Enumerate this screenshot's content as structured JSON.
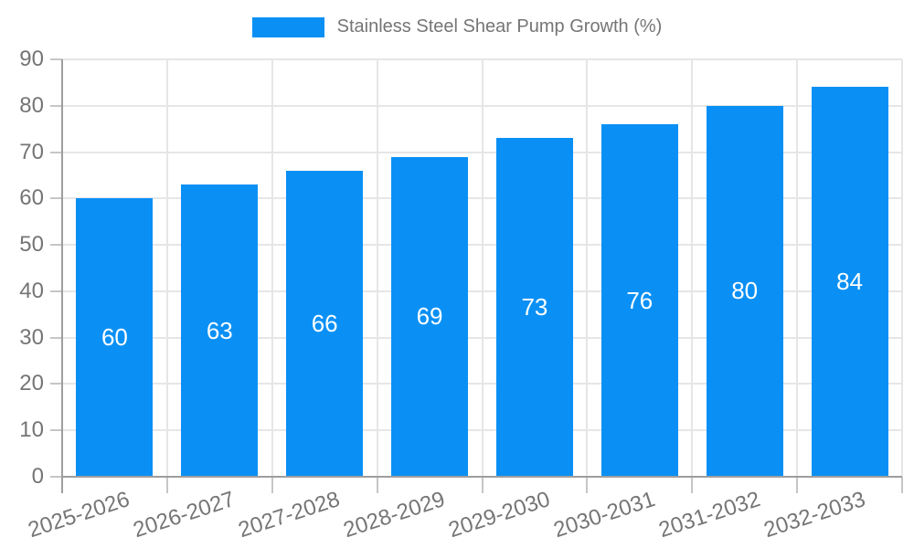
{
  "chart_data": {
    "type": "bar",
    "title": "Stainless Steel Shear Pump Growth (%)",
    "categories": [
      "2025-2026",
      "2026-2027",
      "2027-2028",
      "2028-2029",
      "2029-2030",
      "2030-2031",
      "2031-2032",
      "2032-2033"
    ],
    "series": [
      {
        "name": "Stainless Steel Shear Pump Growth (%)",
        "values": [
          60,
          63,
          66,
          69,
          73,
          76,
          80,
          84
        ]
      }
    ],
    "xlabel": "",
    "ylabel": "",
    "ylim": [
      0,
      90
    ],
    "ytick_step": 10,
    "yticks": [
      0,
      10,
      20,
      30,
      40,
      50,
      60,
      70,
      80,
      90
    ],
    "grid": true,
    "grid_vertical": true,
    "legend_position": "top",
    "value_labels": {
      "show": true,
      "position": "middle-of-bar"
    }
  },
  "colors": {
    "bar": "#0a90f5",
    "grid": "#e6e6e6",
    "axis": "#9e9e9e",
    "tick": "#c6c6c6",
    "tick_label": "#757575",
    "legend_text": "#757575",
    "value_label": "#ffffff",
    "background": "#ffffff"
  }
}
